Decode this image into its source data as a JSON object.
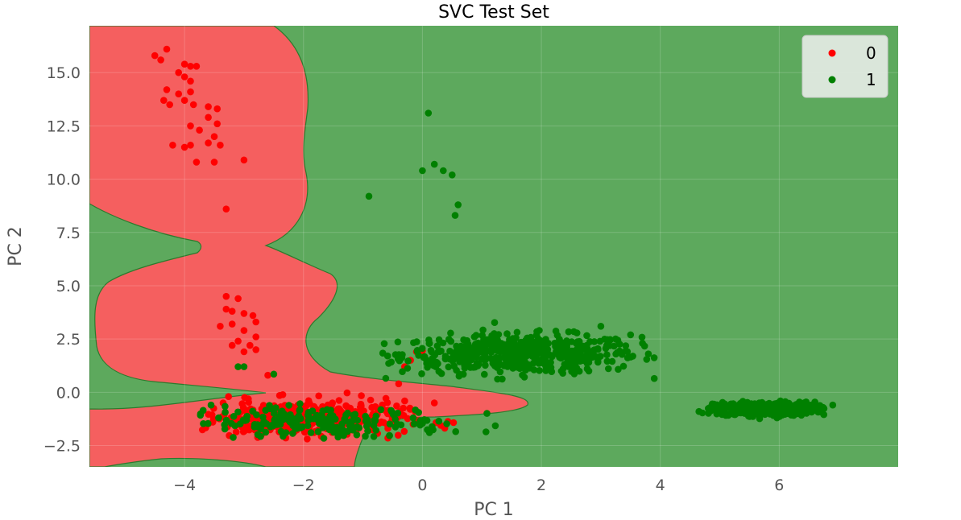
{
  "chart_data": {
    "type": "scatter",
    "title": "SVC Test Set",
    "xlabel": "PC 1",
    "ylabel": "PC 2",
    "xlim": [
      -5.6,
      8.0
    ],
    "ylim": [
      -3.5,
      17.2
    ],
    "xticks": [
      -4,
      -2,
      0,
      2,
      4,
      6
    ],
    "xtick_labels": [
      "−4",
      "−2",
      "0",
      "2",
      "4",
      "6"
    ],
    "yticks": [
      -2.5,
      0.0,
      2.5,
      5.0,
      7.5,
      10.0,
      12.5,
      15.0
    ],
    "ytick_labels": [
      "−2.5",
      "0.0",
      "2.5",
      "5.0",
      "7.5",
      "10.0",
      "12.5",
      "15.0"
    ],
    "grid": true,
    "legend_position": "top-right",
    "background": {
      "description": "decision regions",
      "class_0_color": "#f55f5f",
      "class_1_color": "#5da95d"
    },
    "series": [
      {
        "name": "0",
        "color": "#ff0000",
        "points": [
          [
            -4.5,
            15.8
          ],
          [
            -4.4,
            15.6
          ],
          [
            -4.3,
            16.1
          ],
          [
            -4.0,
            15.4
          ],
          [
            -3.9,
            15.3
          ],
          [
            -3.8,
            15.3
          ],
          [
            -4.1,
            15.0
          ],
          [
            -4.0,
            14.8
          ],
          [
            -3.9,
            14.6
          ],
          [
            -4.3,
            14.2
          ],
          [
            -4.1,
            14.0
          ],
          [
            -3.9,
            14.1
          ],
          [
            -4.35,
            13.7
          ],
          [
            -4.25,
            13.5
          ],
          [
            -4.0,
            13.7
          ],
          [
            -3.85,
            13.5
          ],
          [
            -3.6,
            13.4
          ],
          [
            -3.45,
            13.3
          ],
          [
            -3.6,
            12.9
          ],
          [
            -3.45,
            12.6
          ],
          [
            -3.9,
            12.5
          ],
          [
            -3.75,
            12.3
          ],
          [
            -3.5,
            12.0
          ],
          [
            -3.6,
            11.7
          ],
          [
            -3.4,
            11.6
          ],
          [
            -4.2,
            11.6
          ],
          [
            -4.0,
            11.5
          ],
          [
            -3.9,
            11.6
          ],
          [
            -3.8,
            10.8
          ],
          [
            -3.5,
            10.8
          ],
          [
            -3.0,
            10.9
          ],
          [
            -3.3,
            8.6
          ],
          [
            -3.3,
            4.5
          ],
          [
            -3.1,
            4.4
          ],
          [
            -3.3,
            3.9
          ],
          [
            -3.2,
            3.8
          ],
          [
            -3.0,
            3.7
          ],
          [
            -2.85,
            3.6
          ],
          [
            -2.8,
            3.3
          ],
          [
            -3.4,
            3.1
          ],
          [
            -3.2,
            3.2
          ],
          [
            -3.0,
            2.9
          ],
          [
            -2.8,
            2.6
          ],
          [
            -3.1,
            2.4
          ],
          [
            -2.9,
            2.2
          ],
          [
            -3.2,
            2.2
          ],
          [
            -2.8,
            2.0
          ],
          [
            -3.0,
            1.9
          ],
          [
            -2.6,
            0.8
          ],
          [
            -0.2,
            1.5
          ],
          [
            -0.3,
            1.2
          ],
          [
            -0.1,
            1.9
          ],
          [
            0.0,
            1.95
          ],
          [
            -0.4,
            0.4
          ],
          [
            0.2,
            -0.5
          ]
        ],
        "clusters": [
          {
            "cx": -2.0,
            "cy": -1.25,
            "sx": 0.85,
            "sy": 0.42,
            "n": 380,
            "clip": [
              -3.9,
              0.6,
              -2.2,
              0.1
            ]
          }
        ]
      },
      {
        "name": "1",
        "color": "#008000",
        "points": [
          [
            0.1,
            13.1
          ],
          [
            0.2,
            10.7
          ],
          [
            0.0,
            10.4
          ],
          [
            0.35,
            10.4
          ],
          [
            0.5,
            10.2
          ],
          [
            -0.9,
            9.2
          ],
          [
            0.6,
            8.8
          ],
          [
            0.55,
            8.3
          ],
          [
            -3.1,
            1.2
          ],
          [
            -3.0,
            1.2
          ],
          [
            -2.5,
            0.85
          ],
          [
            3.8,
            1.8
          ],
          [
            3.7,
            2.3
          ],
          [
            3.5,
            2.7
          ],
          [
            3.0,
            3.1
          ],
          [
            3.1,
            2.2
          ],
          [
            6.9,
            -0.6
          ],
          [
            4.65,
            -0.9
          ]
        ],
        "clusters": [
          {
            "cx": 1.65,
            "cy": 1.8,
            "sx": 1.0,
            "sy": 0.45,
            "n": 520,
            "clip": [
              -0.7,
              3.9,
              0.6,
              3.3
            ]
          },
          {
            "cx": 5.75,
            "cy": -0.78,
            "sx": 0.42,
            "sy": 0.16,
            "n": 420,
            "clip": [
              4.7,
              7.0,
              -1.3,
              -0.3
            ]
          },
          {
            "cx": -1.8,
            "cy": -1.45,
            "sx": 1.1,
            "sy": 0.38,
            "n": 200,
            "clip": [
              -3.8,
              1.5,
              -2.2,
              -0.5
            ]
          }
        ]
      }
    ]
  }
}
